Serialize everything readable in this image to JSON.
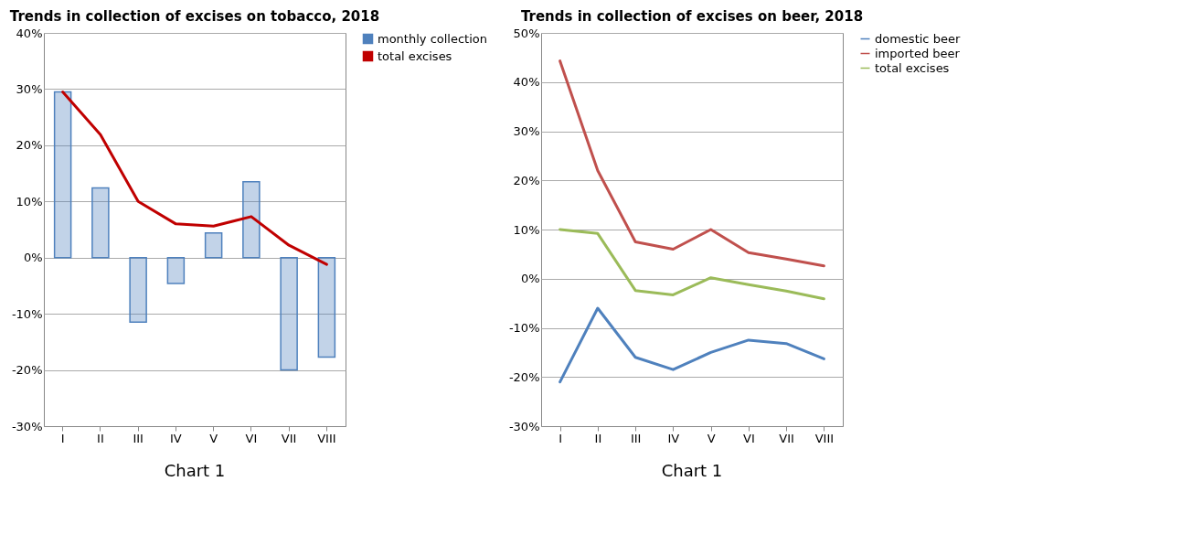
{
  "chart_data": [
    {
      "type": "bar",
      "title": "Trends in collection of excises on tobacco, 2018",
      "categories": [
        "I",
        "II",
        "III",
        "IV",
        "V",
        "VI",
        "VII",
        "VIII"
      ],
      "series": [
        {
          "name": "monthly collection",
          "color": "#4f81bd",
          "values": [
            29.5,
            12.4,
            -11.5,
            -4.6,
            4.4,
            13.5,
            -20,
            -17.7
          ]
        },
        {
          "name": "total excises",
          "type": "line",
          "color": "#c00000",
          "values": [
            29.5,
            21.9,
            10,
            6,
            5.6,
            7.3,
            2.2,
            -1.2
          ]
        }
      ],
      "ylim": [
        -30,
        40
      ],
      "yticks": [
        {
          "value": -30,
          "label": "-30%"
        },
        {
          "value": -20,
          "label": "-20%"
        },
        {
          "value": -10,
          "label": "-10%"
        },
        {
          "value": 0,
          "label": "0%"
        },
        {
          "value": 10,
          "label": "10%"
        },
        {
          "value": 20,
          "label": "20%"
        },
        {
          "value": 30,
          "label": "30%"
        },
        {
          "value": 40,
          "label": "40%"
        }
      ],
      "grid": "y",
      "legend": "right",
      "annotations": [
        "Chart 1"
      ]
    },
    {
      "type": "line",
      "title": "Trends in collection of excises on beer, 2018",
      "categories": [
        "I",
        "II",
        "III",
        "IV",
        "V",
        "VI",
        "VII",
        "VIII"
      ],
      "series": [
        {
          "name": "domestic beer",
          "color": "#4f81bd",
          "values": [
            -21,
            -6,
            -16,
            -18.5,
            -15,
            -12.5,
            -13.2,
            -16.3
          ]
        },
        {
          "name": "imported beer",
          "color": "#c0504d",
          "values": [
            44.3,
            22,
            7.5,
            6,
            10,
            5.3,
            4,
            2.6
          ]
        },
        {
          "name": "total excises",
          "color": "#9bbb59",
          "values": [
            10,
            9.2,
            -2.4,
            -3.3,
            0.2,
            -1.2,
            -2.5,
            -4.1
          ]
        }
      ],
      "ylim": [
        -30,
        50
      ],
      "yticks": [
        {
          "value": -30,
          "label": "-30%"
        },
        {
          "value": -20,
          "label": "-20%"
        },
        {
          "value": -10,
          "label": "-10%"
        },
        {
          "value": 0,
          "label": "0%"
        },
        {
          "value": 10,
          "label": "10%"
        },
        {
          "value": 20,
          "label": "20%"
        },
        {
          "value": 30,
          "label": "30%"
        },
        {
          "value": 40,
          "label": "40%"
        },
        {
          "value": 50,
          "label": "50%"
        }
      ],
      "grid": "y",
      "legend": "right",
      "annotations": [
        "Chart 1"
      ]
    }
  ]
}
